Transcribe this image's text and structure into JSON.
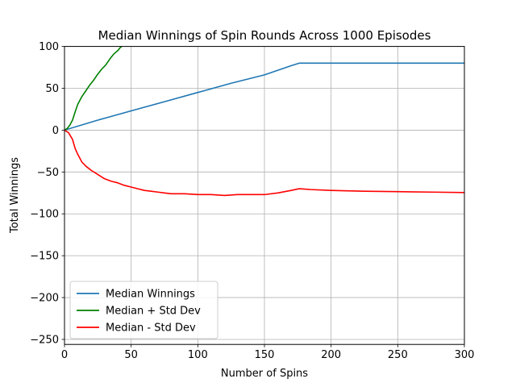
{
  "chart_data": {
    "type": "line",
    "title": "Median Winnings of Spin Rounds Across 1000 Episodes",
    "xlabel": "Number of Spins",
    "ylabel": "Total Winnings",
    "xlim": [
      0,
      300
    ],
    "ylim": [
      -256,
      100
    ],
    "xticks": [
      0,
      50,
      100,
      150,
      200,
      250,
      300
    ],
    "yticks": [
      -250,
      -200,
      -150,
      -100,
      -50,
      0,
      50,
      100
    ],
    "ytick_labels": [
      "−250",
      "−200",
      "−150",
      "−100",
      "−50",
      "0",
      "50",
      "100"
    ],
    "grid": true,
    "legend_position": "lower-left",
    "series": [
      {
        "name": "Median Winnings",
        "color": "#1f77b4",
        "points": [
          [
            0,
            0
          ],
          [
            25,
            12
          ],
          [
            50,
            23
          ],
          [
            75,
            34
          ],
          [
            100,
            45
          ],
          [
            125,
            56
          ],
          [
            150,
            66
          ],
          [
            170,
            77
          ],
          [
            176,
            80
          ],
          [
            200,
            80
          ],
          [
            250,
            80
          ],
          [
            300,
            80
          ]
        ]
      },
      {
        "name": "Median + Std Dev",
        "color": "#008000",
        "points": [
          [
            0,
            0
          ],
          [
            2,
            2
          ],
          [
            4,
            6
          ],
          [
            6,
            12
          ],
          [
            8,
            22
          ],
          [
            10,
            31
          ],
          [
            13,
            40
          ],
          [
            16,
            47
          ],
          [
            19,
            54
          ],
          [
            22,
            60
          ],
          [
            25,
            67
          ],
          [
            28,
            73
          ],
          [
            31,
            78
          ],
          [
            34,
            85
          ],
          [
            37,
            91
          ],
          [
            40,
            95
          ],
          [
            42,
            99
          ],
          [
            43,
            100
          ]
        ]
      },
      {
        "name": "Median - Std Dev",
        "color": "#ff0000",
        "points": [
          [
            0,
            0
          ],
          [
            3,
            -3
          ],
          [
            6,
            -11
          ],
          [
            8,
            -22
          ],
          [
            10,
            -29
          ],
          [
            13,
            -38
          ],
          [
            16,
            -43
          ],
          [
            20,
            -48
          ],
          [
            25,
            -53
          ],
          [
            30,
            -58
          ],
          [
            35,
            -61
          ],
          [
            40,
            -63
          ],
          [
            45,
            -66
          ],
          [
            50,
            -68
          ],
          [
            55,
            -70
          ],
          [
            60,
            -72
          ],
          [
            65,
            -73
          ],
          [
            70,
            -74
          ],
          [
            75,
            -75
          ],
          [
            80,
            -76
          ],
          [
            90,
            -76
          ],
          [
            100,
            -77
          ],
          [
            110,
            -77
          ],
          [
            120,
            -78
          ],
          [
            130,
            -77
          ],
          [
            140,
            -77
          ],
          [
            150,
            -77
          ],
          [
            160,
            -75
          ],
          [
            170,
            -72
          ],
          [
            176,
            -70
          ],
          [
            185,
            -71
          ],
          [
            200,
            -72
          ],
          [
            225,
            -73
          ],
          [
            250,
            -73.5
          ],
          [
            275,
            -74
          ],
          [
            300,
            -74.5
          ]
        ]
      }
    ]
  }
}
